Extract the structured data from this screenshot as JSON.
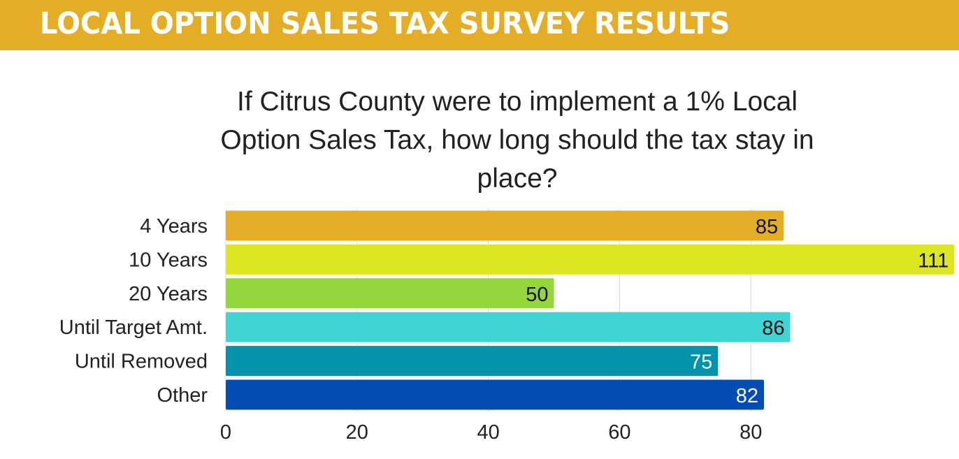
{
  "header": {
    "title": "LOCAL OPTION SALES TAX SURVEY RESULTS"
  },
  "colors": {
    "banner": "#E3AE26",
    "bars": [
      "#E3AE26",
      "#DCE623",
      "#95D63D",
      "#41D4D4",
      "#0391AB",
      "#064DB3"
    ],
    "label_dark": "#111111",
    "label_light": "#ffffff",
    "grid": "#d8d8d8"
  },
  "chart_data": {
    "type": "bar",
    "orientation": "horizontal",
    "title": "If Citrus County were to implement a 1% Local Option Sales Tax, how long should the tax stay in place?",
    "categories": [
      "4 Years",
      "10 Years",
      "20 Years",
      "Until Target Amt.",
      "Until Removed",
      "Other"
    ],
    "values": [
      85,
      111,
      50,
      86,
      75,
      82
    ],
    "data_labels": [
      "85",
      "111",
      "50",
      "86",
      "75",
      "82"
    ],
    "label_colors": [
      "dark",
      "dark",
      "dark",
      "dark",
      "light",
      "light"
    ],
    "xlim": [
      0,
      90
    ],
    "xticks": [
      0,
      20,
      40,
      60,
      80
    ],
    "xtick_labels": [
      "0",
      "20",
      "40",
      "60",
      "80"
    ],
    "xlabel": "",
    "ylabel": "",
    "grid": true,
    "legend": "none"
  }
}
